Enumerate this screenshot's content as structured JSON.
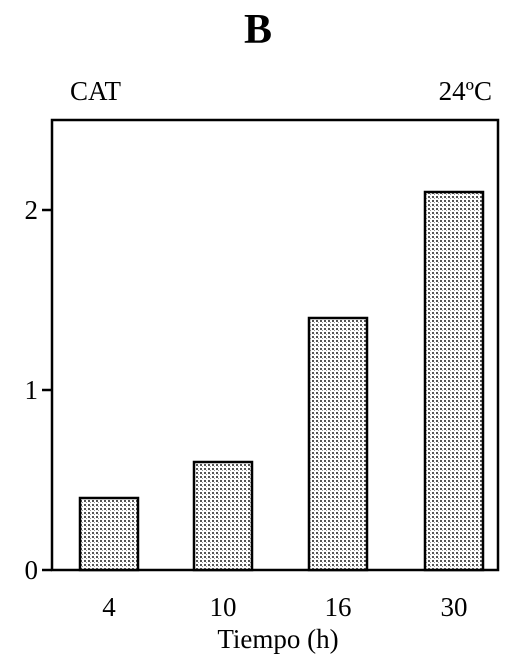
{
  "panel_label": "B",
  "top_left_label": "CAT",
  "top_right_label": "24ºC",
  "chart_data": {
    "type": "bar",
    "categories": [
      "4",
      "10",
      "16",
      "30"
    ],
    "values": [
      0.4,
      0.6,
      1.4,
      2.1
    ],
    "title": "",
    "xlabel": "Tiempo (h)",
    "ylabel": "",
    "ylim": [
      0,
      2.5
    ],
    "yticks": [
      0,
      1,
      2
    ],
    "bar_fill": "stippled gray",
    "grid": false
  }
}
